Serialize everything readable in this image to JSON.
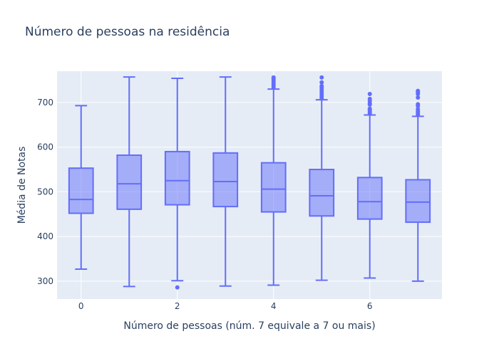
{
  "chart_data": {
    "type": "box",
    "title": "Número de pessoas na residência",
    "xlabel": "Número de pessoas (núm. 7 equivale a 7 ou mais)",
    "ylabel": "Média de Notas",
    "xlim": [
      -0.5,
      7.5
    ],
    "ylim": [
      260,
      770
    ],
    "x_ticks": [
      0,
      2,
      4,
      6
    ],
    "y_ticks": [
      300,
      400,
      500,
      600,
      700
    ],
    "grid": true,
    "legend": "none",
    "colors": {
      "plot_bg": "#e5ecf6",
      "grid": "#ffffff",
      "box_line": "#636efa",
      "box_fill": "rgba(99,110,250,0.5)"
    },
    "boxes": [
      {
        "x": 0,
        "lower_whisker": 327,
        "q1": 452,
        "median": 483,
        "q3": 553,
        "upper_whisker": 693,
        "outliers": []
      },
      {
        "x": 1,
        "lower_whisker": 288,
        "q1": 461,
        "median": 518,
        "q3": 582,
        "upper_whisker": 757,
        "outliers": []
      },
      {
        "x": 2,
        "lower_whisker": 301,
        "q1": 471,
        "median": 525,
        "q3": 590,
        "upper_whisker": 754,
        "outliers": [
          286
        ]
      },
      {
        "x": 3,
        "lower_whisker": 289,
        "q1": 467,
        "median": 523,
        "q3": 587,
        "upper_whisker": 757,
        "outliers": []
      },
      {
        "x": 4,
        "lower_whisker": 291,
        "q1": 455,
        "median": 506,
        "q3": 565,
        "upper_whisker": 730,
        "outliers": [
          734,
          738,
          742,
          746,
          750,
          753,
          756
        ]
      },
      {
        "x": 5,
        "lower_whisker": 302,
        "q1": 446,
        "median": 491,
        "q3": 550,
        "upper_whisker": 706,
        "outliers": [
          709,
          713,
          718,
          723,
          728,
          733,
          737,
          745,
          756
        ]
      },
      {
        "x": 6,
        "lower_whisker": 307,
        "q1": 439,
        "median": 478,
        "q3": 532,
        "upper_whisker": 672,
        "outliers": [
          675,
          679,
          683,
          686,
          695,
          698,
          703,
          708,
          719
        ]
      },
      {
        "x": 7,
        "lower_whisker": 300,
        "q1": 432,
        "median": 477,
        "q3": 527,
        "upper_whisker": 669,
        "outliers": [
          672,
          676,
          680,
          685,
          692,
          696,
          711,
          719,
          723,
          726
        ]
      }
    ]
  }
}
